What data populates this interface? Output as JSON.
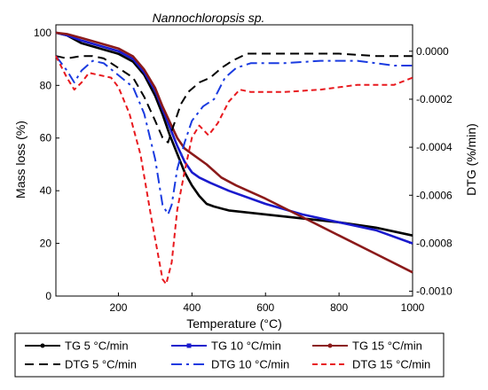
{
  "chart_data": {
    "type": "line",
    "title": "Nannochloropsis sp.",
    "xlabel": "Temperature (°C)",
    "ylabel": "Mass loss (%)",
    "y2label": "DTG (%/min)",
    "xlim": [
      30,
      1000
    ],
    "ylim": [
      0,
      103
    ],
    "y2lim": [
      -0.00102,
      0.00011
    ],
    "x_ticks": [
      200,
      400,
      600,
      800,
      1000
    ],
    "y_ticks": [
      0,
      20,
      40,
      60,
      80,
      100
    ],
    "y2_ticks": [
      {
        "value": 0.0,
        "label": "0.0000"
      },
      {
        "value": -0.0002,
        "label": "-0.0002"
      },
      {
        "value": -0.0004,
        "label": "-0.0004"
      },
      {
        "value": -0.0006,
        "label": "-0.0006"
      },
      {
        "value": -0.0008,
        "label": "-0.0008"
      },
      {
        "value": -0.001,
        "label": "-0.0010"
      }
    ],
    "grid": false,
    "legend_position": "bottom",
    "series": [
      {
        "name": "TG 5 °C/min",
        "axis": "left",
        "color": "#000000",
        "dash": "solid",
        "marker": "dot",
        "points": [
          [
            30,
            100
          ],
          [
            60,
            99
          ],
          [
            100,
            96
          ],
          [
            150,
            94
          ],
          [
            200,
            92
          ],
          [
            240,
            89
          ],
          [
            270,
            84
          ],
          [
            300,
            76
          ],
          [
            320,
            69
          ],
          [
            340,
            61
          ],
          [
            360,
            54
          ],
          [
            380,
            47
          ],
          [
            400,
            42
          ],
          [
            420,
            38
          ],
          [
            440,
            35
          ],
          [
            460,
            34
          ],
          [
            500,
            32.5
          ],
          [
            600,
            31
          ],
          [
            700,
            29.5
          ],
          [
            800,
            28
          ],
          [
            900,
            26
          ],
          [
            1000,
            23
          ]
        ]
      },
      {
        "name": "TG 10 °C/min",
        "axis": "left",
        "color": "#1a1acd",
        "dash": "solid",
        "marker": "square",
        "points": [
          [
            30,
            100
          ],
          [
            60,
            99
          ],
          [
            100,
            97
          ],
          [
            150,
            95
          ],
          [
            200,
            93
          ],
          [
            240,
            90
          ],
          [
            270,
            85
          ],
          [
            300,
            78
          ],
          [
            320,
            71
          ],
          [
            340,
            64
          ],
          [
            360,
            57
          ],
          [
            380,
            51
          ],
          [
            400,
            47
          ],
          [
            420,
            45
          ],
          [
            450,
            43
          ],
          [
            500,
            40
          ],
          [
            600,
            35
          ],
          [
            700,
            31
          ],
          [
            800,
            28
          ],
          [
            900,
            25
          ],
          [
            1000,
            20
          ]
        ]
      },
      {
        "name": "TG 15 °C/min",
        "axis": "left",
        "color": "#8b1a1a",
        "dash": "solid",
        "marker": "dot",
        "points": [
          [
            30,
            100
          ],
          [
            60,
            99.5
          ],
          [
            100,
            98
          ],
          [
            150,
            96
          ],
          [
            200,
            94
          ],
          [
            240,
            91
          ],
          [
            270,
            86
          ],
          [
            300,
            79
          ],
          [
            320,
            72
          ],
          [
            340,
            66
          ],
          [
            360,
            60
          ],
          [
            380,
            56
          ],
          [
            400,
            54
          ],
          [
            440,
            50
          ],
          [
            480,
            45
          ],
          [
            520,
            42
          ],
          [
            600,
            37
          ],
          [
            700,
            30
          ],
          [
            800,
            23
          ],
          [
            900,
            16
          ],
          [
            1000,
            9
          ]
        ]
      },
      {
        "name": "DTG 5 °C/min",
        "axis": "right",
        "color": "#000000",
        "dash": "10,6",
        "marker": "none",
        "points": [
          [
            30,
            -2e-05
          ],
          [
            60,
            -3e-05
          ],
          [
            100,
            -2e-05
          ],
          [
            130,
            -2e-05
          ],
          [
            160,
            -3e-05
          ],
          [
            200,
            -7e-05
          ],
          [
            240,
            -0.00011
          ],
          [
            270,
            -0.00019
          ],
          [
            300,
            -0.00029
          ],
          [
            320,
            -0.00036
          ],
          [
            335,
            -0.00038
          ],
          [
            350,
            -0.00031
          ],
          [
            370,
            -0.00022
          ],
          [
            390,
            -0.00017
          ],
          [
            420,
            -0.00013
          ],
          [
            450,
            -0.00011
          ],
          [
            480,
            -7e-05
          ],
          [
            510,
            -4e-05
          ],
          [
            550,
            -1e-05
          ],
          [
            650,
            -1e-05
          ],
          [
            800,
            -1e-05
          ],
          [
            900,
            -2e-05
          ],
          [
            1000,
            -2e-05
          ]
        ]
      },
      {
        "name": "DTG 10 °C/min",
        "axis": "right",
        "color": "#1a3be0",
        "dash": "12,5,3,5",
        "marker": "none",
        "points": [
          [
            30,
            -2e-05
          ],
          [
            60,
            -8e-05
          ],
          [
            80,
            -0.00013
          ],
          [
            100,
            -8e-05
          ],
          [
            130,
            -4e-05
          ],
          [
            160,
            -5e-05
          ],
          [
            200,
            -0.0001
          ],
          [
            240,
            -0.00015
          ],
          [
            270,
            -0.00026
          ],
          [
            300,
            -0.00045
          ],
          [
            320,
            -0.00064
          ],
          [
            335,
            -0.00068
          ],
          [
            345,
            -0.00064
          ],
          [
            360,
            -0.00049
          ],
          [
            380,
            -0.00038
          ],
          [
            400,
            -0.00029
          ],
          [
            430,
            -0.00023
          ],
          [
            460,
            -0.0002
          ],
          [
            490,
            -0.00011
          ],
          [
            520,
            -7e-05
          ],
          [
            560,
            -5e-05
          ],
          [
            650,
            -5e-05
          ],
          [
            750,
            -4e-05
          ],
          [
            850,
            -4e-05
          ],
          [
            950,
            -6e-05
          ],
          [
            1000,
            -6e-05
          ]
        ]
      },
      {
        "name": "DTG 15 °C/min",
        "axis": "right",
        "color": "#e8191e",
        "dash": "6,4",
        "marker": "none",
        "points": [
          [
            30,
            -2e-05
          ],
          [
            60,
            -0.00011
          ],
          [
            80,
            -0.00016
          ],
          [
            100,
            -0.00013
          ],
          [
            120,
            -9e-05
          ],
          [
            150,
            -0.0001
          ],
          [
            180,
            -0.00011
          ],
          [
            200,
            -0.00015
          ],
          [
            230,
            -0.00026
          ],
          [
            260,
            -0.00043
          ],
          [
            290,
            -0.0007
          ],
          [
            320,
            -0.00095
          ],
          [
            330,
            -0.00097
          ],
          [
            345,
            -0.00088
          ],
          [
            360,
            -0.00066
          ],
          [
            380,
            -0.0005
          ],
          [
            400,
            -0.00036
          ],
          [
            420,
            -0.00031
          ],
          [
            445,
            -0.00035
          ],
          [
            470,
            -0.0003
          ],
          [
            500,
            -0.00021
          ],
          [
            530,
            -0.00016
          ],
          [
            560,
            -0.00017
          ],
          [
            650,
            -0.00017
          ],
          [
            750,
            -0.00016
          ],
          [
            850,
            -0.00014
          ],
          [
            950,
            -0.00014
          ],
          [
            1000,
            -0.00011
          ]
        ]
      }
    ]
  }
}
